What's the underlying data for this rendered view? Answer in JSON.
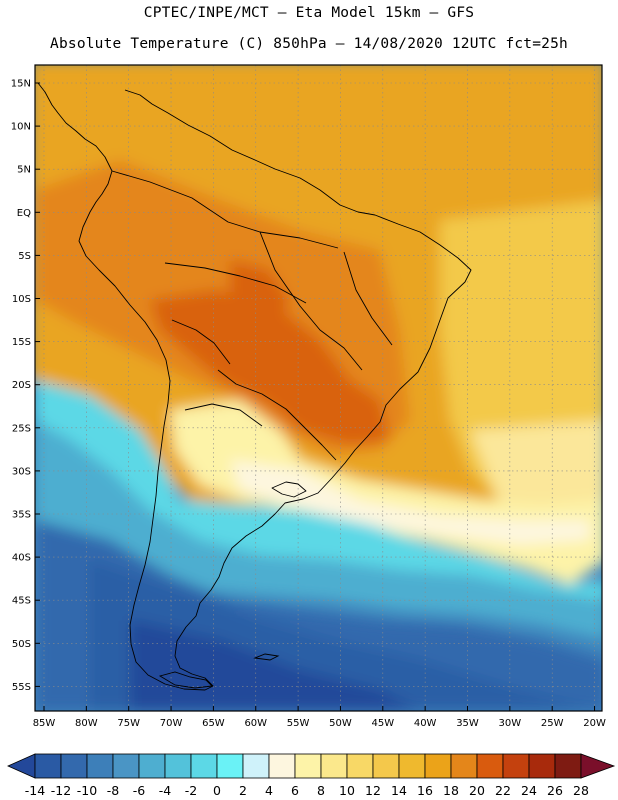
{
  "header": {
    "title_line1": "CPTEC/INPE/MCT –   Eta Model 15km – GFS",
    "title_line2": "Absolute Temperature (C) 850hPa – 14/08/2020 12UTC fct=25h"
  },
  "map": {
    "lat_labels": [
      "15N",
      "10N",
      "5N",
      "EQ",
      "5S",
      "10S",
      "15S",
      "20S",
      "25S",
      "30S",
      "35S",
      "40S",
      "45S",
      "50S",
      "55S"
    ],
    "lon_labels": [
      "85W",
      "80W",
      "75W",
      "70W",
      "65W",
      "60W",
      "55W",
      "50W",
      "45W",
      "40W",
      "35W",
      "30W",
      "25W",
      "20W"
    ],
    "grid": "dotted every 5 degrees"
  },
  "colorbar": {
    "ticks": [
      "-14",
      "-12",
      "-10",
      "-8",
      "-6",
      "-4",
      "-2",
      "0",
      "2",
      "4",
      "6",
      "8",
      "10",
      "12",
      "14",
      "16",
      "18",
      "20",
      "22",
      "24",
      "26",
      "28"
    ],
    "colors": [
      "#23489a",
      "#2a5aa4",
      "#3369ad",
      "#3d7fb9",
      "#4a95c5",
      "#4eaed0",
      "#53c2da",
      "#5cd8e6",
      "#6af2f6",
      "#cff2fa",
      "#fdf6df",
      "#fdf3a8",
      "#fbe88c",
      "#f8d866",
      "#f4c84b",
      "#efb92e",
      "#eba319",
      "#e4861a",
      "#d95b0e",
      "#c4410e",
      "#a82a0c",
      "#7e1b12",
      "#7a0f2a"
    ]
  },
  "palette": {
    "warm_tropics": "#e9a521",
    "hot_center": "#d9680f",
    "cool_sea": "#3f86bd",
    "cold_south": "#2c5fa6",
    "land_border": "#000000"
  }
}
